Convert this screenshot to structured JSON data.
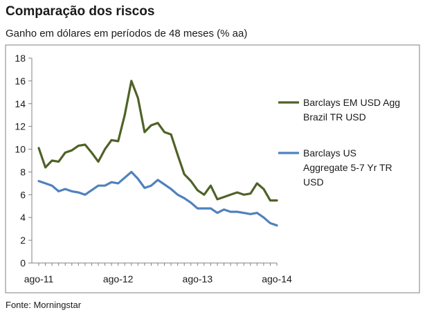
{
  "chart_data": {
    "type": "line",
    "title": "Comparação dos riscos",
    "subtitle": "Ganho em dólares em períodos de 48 meses (% aa)",
    "source": "Fonte: Morningstar",
    "xlabel": "",
    "ylabel": "",
    "ylim": [
      0,
      18
    ],
    "yticks": [
      "0",
      "2",
      "4",
      "6",
      "8",
      "10",
      "12",
      "14",
      "16",
      "18"
    ],
    "xlim": [
      0,
      36
    ],
    "xticks": [
      {
        "label": "ago-11",
        "x": 0
      },
      {
        "label": "ago-12",
        "x": 12
      },
      {
        "label": "ago-13",
        "x": 24
      },
      {
        "label": "ago-14",
        "x": 36
      }
    ],
    "grid": false,
    "legend": "right",
    "series": [
      {
        "name": "Barclays EM USD Agg Brazil TR USD",
        "legend_lines": [
          "Barclays EM USD Agg",
          "Brazil TR USD"
        ],
        "color": "#4f6228",
        "x": [
          0,
          1,
          2,
          3,
          4,
          5,
          6,
          7,
          8,
          9,
          10,
          11,
          12,
          13,
          14,
          15,
          16,
          17,
          18,
          19,
          20,
          21,
          22,
          23,
          24,
          25,
          26,
          27,
          28,
          29,
          30,
          31,
          32,
          33,
          34,
          35,
          36
        ],
        "values": [
          10.1,
          8.4,
          9.0,
          8.9,
          9.7,
          9.9,
          10.3,
          10.4,
          9.7,
          8.9,
          10.0,
          10.8,
          10.7,
          13.0,
          16.0,
          14.5,
          11.5,
          12.1,
          12.3,
          11.5,
          11.3,
          9.5,
          7.8,
          7.2,
          6.4,
          6.0,
          6.8,
          5.6,
          5.8,
          6.0,
          6.2,
          6.0,
          6.1,
          7.0,
          6.5,
          5.5,
          5.5
        ]
      },
      {
        "name": "Barclays US Aggregate 5-7 Yr TR USD",
        "legend_lines": [
          "Barclays US",
          "Aggregate 5-7 Yr TR",
          "USD"
        ],
        "color": "#4f81bd",
        "x": [
          0,
          1,
          2,
          3,
          4,
          5,
          6,
          7,
          8,
          9,
          10,
          11,
          12,
          13,
          14,
          15,
          16,
          17,
          18,
          19,
          20,
          21,
          22,
          23,
          24,
          25,
          26,
          27,
          28,
          29,
          30,
          31,
          32,
          33,
          34,
          35,
          36
        ],
        "values": [
          7.2,
          7.0,
          6.8,
          6.3,
          6.5,
          6.3,
          6.2,
          6.0,
          6.4,
          6.8,
          6.8,
          7.1,
          7.0,
          7.5,
          8.0,
          7.4,
          6.6,
          6.8,
          7.3,
          6.9,
          6.5,
          6.0,
          5.7,
          5.3,
          4.8,
          4.8,
          4.8,
          4.4,
          4.7,
          4.5,
          4.5,
          4.4,
          4.3,
          4.4,
          4.0,
          3.5,
          3.3
        ]
      }
    ]
  }
}
